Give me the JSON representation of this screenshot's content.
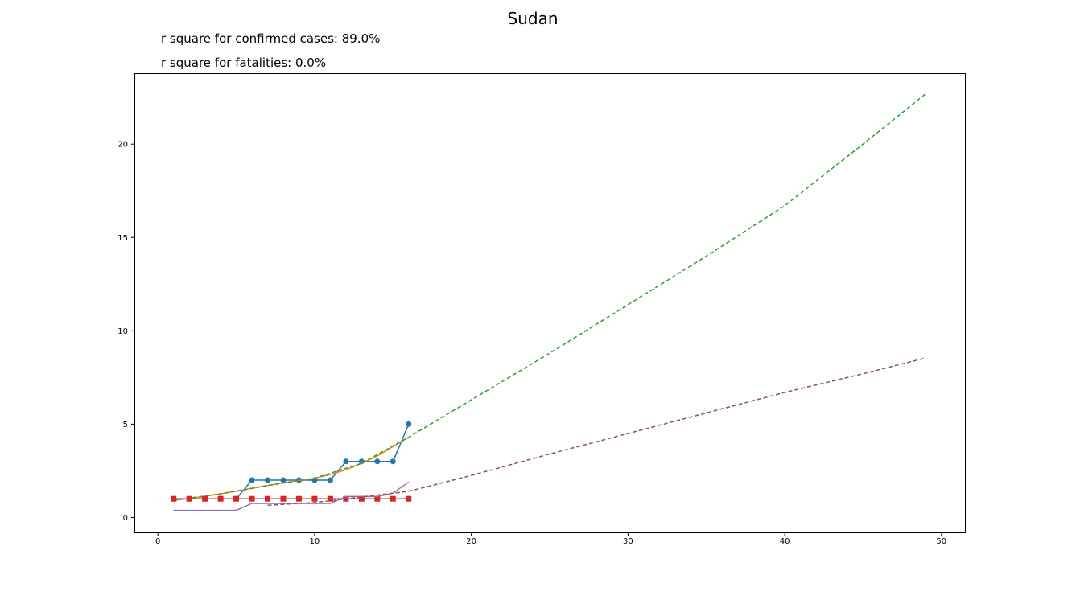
{
  "chart_data": {
    "type": "line",
    "title": "Sudan",
    "annotations": [
      "r square for confirmed cases: 89.0%",
      "r square for fatalities: 0.0%"
    ],
    "xlabel": "",
    "ylabel": "",
    "xlim": [
      -1.5,
      51.5
    ],
    "ylim": [
      -0.8,
      23.8
    ],
    "xticks": [
      0,
      10,
      20,
      30,
      40,
      50
    ],
    "yticks": [
      0,
      5,
      10,
      15,
      20
    ],
    "grid": false,
    "legend": "none",
    "series": [
      {
        "color": "#1f77b4",
        "style": "solid",
        "marker": "circle",
        "x": [
          1,
          2,
          3,
          4,
          5,
          6,
          7,
          8,
          9,
          10,
          11,
          12,
          13,
          14,
          15,
          16
        ],
        "y": [
          1,
          1,
          1,
          1,
          1,
          2,
          2,
          2,
          2,
          2,
          2,
          3,
          3,
          3,
          3,
          5
        ]
      },
      {
        "color": "#ff7f0e",
        "style": "solid",
        "marker": "none",
        "x": [
          1,
          2,
          3,
          4,
          5,
          6,
          7,
          8,
          9,
          10,
          11,
          12,
          13,
          14,
          15,
          16
        ],
        "y": [
          0.92,
          1.02,
          1.13,
          1.27,
          1.41,
          1.56,
          1.71,
          1.86,
          1.98,
          2.1,
          2.3,
          2.55,
          2.9,
          3.3,
          3.8,
          4.3
        ]
      },
      {
        "color": "#2ca02c",
        "style": "dashed",
        "marker": "none",
        "x": [
          1,
          4,
          7,
          10,
          13,
          16,
          20,
          25,
          30,
          35,
          40,
          45,
          49
        ],
        "y": [
          0.92,
          1.27,
          1.71,
          2.1,
          2.9,
          4.3,
          6.3,
          8.8,
          11.4,
          14.0,
          16.7,
          20.0,
          22.7
        ]
      },
      {
        "color": "#d62728",
        "style": "solid",
        "marker": "square",
        "x": [
          1,
          2,
          3,
          4,
          5,
          6,
          7,
          8,
          9,
          10,
          11,
          12,
          13,
          14,
          15,
          16
        ],
        "y": [
          1,
          1,
          1,
          1,
          1,
          1,
          1,
          1,
          1,
          1,
          1,
          1,
          1,
          1,
          1,
          1
        ]
      },
      {
        "color": "#9467bd",
        "style": "solid",
        "marker": "none",
        "x": [
          1,
          5,
          6,
          11,
          12,
          14,
          15,
          16
        ],
        "y": [
          0.38,
          0.38,
          0.75,
          0.75,
          1.12,
          1.12,
          1.3,
          1.9
        ]
      },
      {
        "color": "#8c564b",
        "style": "dashed",
        "marker": "none",
        "x": [
          7,
          10,
          13,
          16,
          20,
          25,
          30,
          35,
          40,
          45,
          49
        ],
        "y": [
          0.65,
          0.8,
          1.1,
          1.4,
          2.25,
          3.4,
          4.5,
          5.6,
          6.7,
          7.7,
          8.55
        ]
      }
    ]
  }
}
